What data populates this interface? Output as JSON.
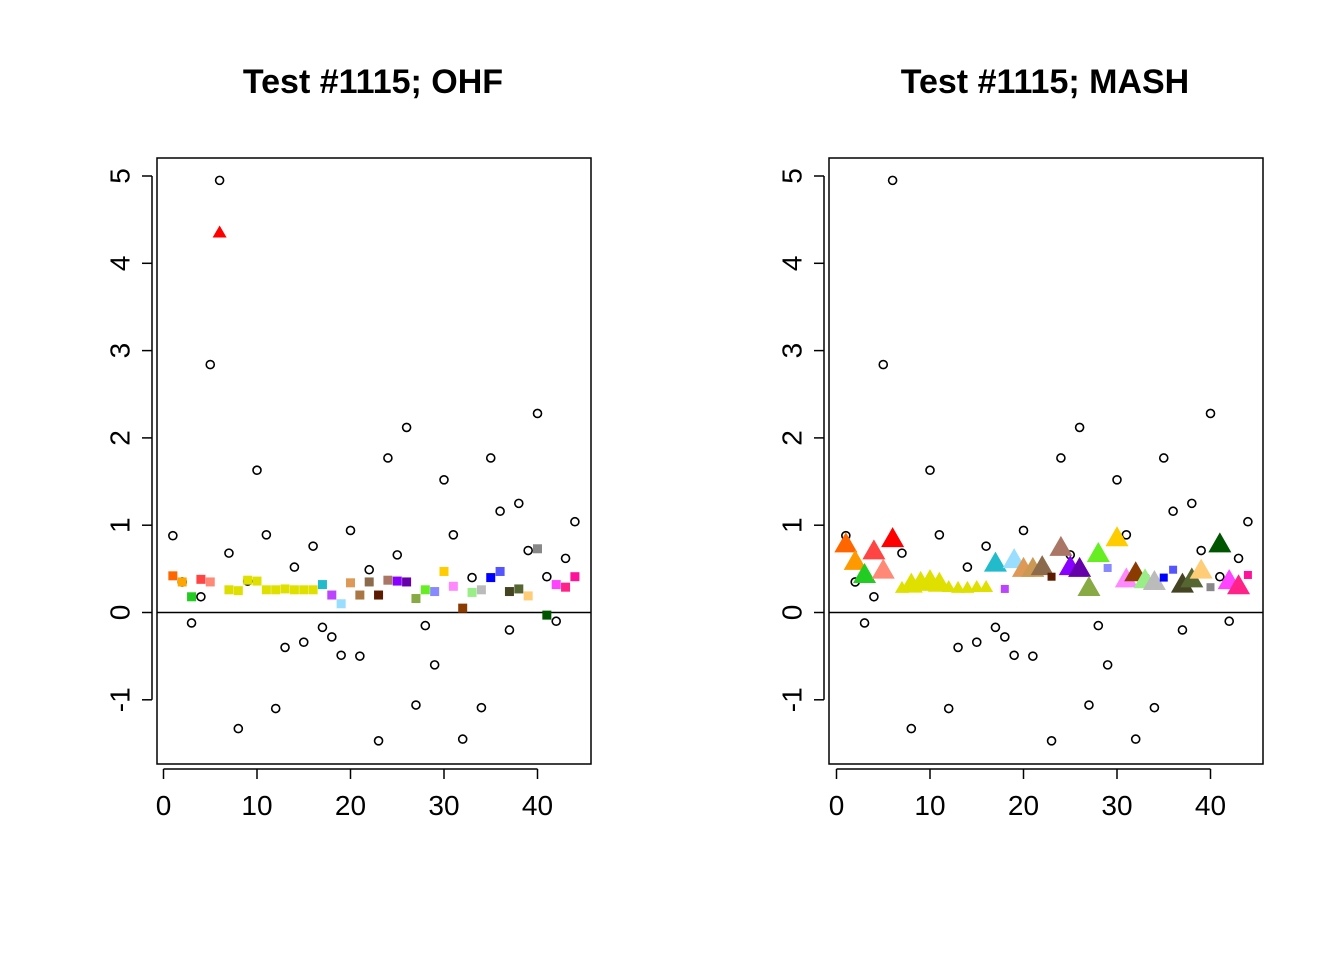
{
  "chart_data": [
    {
      "type": "scatter",
      "title": "Test #1115; OHF",
      "xlabel": "",
      "ylabel": "",
      "xlim": [
        0,
        44
      ],
      "ylim": [
        -1.5,
        5
      ],
      "xticks": [
        "0",
        "10",
        "20",
        "30",
        "40"
      ],
      "yticks": [
        "-1",
        "0",
        "1",
        "2",
        "3",
        "4",
        "5"
      ],
      "hline": 0,
      "grid": false,
      "legend": "none",
      "series": [
        {
          "marker": "open-circle",
          "color": "#000000",
          "x": [
            1,
            2,
            3,
            4,
            5,
            6,
            7,
            8,
            9,
            10,
            11,
            12,
            13,
            14,
            15,
            16,
            17,
            18,
            19,
            20,
            21,
            22,
            23,
            24,
            25,
            26,
            27,
            28,
            29,
            30,
            31,
            32,
            33,
            34,
            35,
            36,
            37,
            38,
            39,
            40,
            41,
            42,
            43,
            44
          ],
          "y": [
            0.88,
            0.35,
            -0.12,
            0.18,
            2.84,
            4.95,
            0.68,
            -1.33,
            0.36,
            1.63,
            0.89,
            -1.1,
            -0.4,
            0.52,
            -0.34,
            0.76,
            -0.17,
            -0.28,
            -0.49,
            0.94,
            -0.5,
            0.49,
            -1.47,
            1.77,
            0.66,
            2.12,
            -1.06,
            -0.15,
            -0.6,
            1.52,
            0.89,
            -1.45,
            0.4,
            -1.09,
            1.77,
            1.16,
            -0.2,
            1.25,
            0.71,
            2.28,
            0.41,
            -0.1,
            0.62,
            1.04
          ]
        },
        {
          "marker": "filled-square",
          "x": [
            1,
            2,
            3,
            4,
            5,
            7,
            8,
            9,
            10,
            11,
            12,
            13,
            14,
            15,
            16,
            17,
            18,
            19,
            20,
            21,
            22,
            23,
            24,
            25,
            26,
            27,
            28,
            29,
            30,
            31,
            32,
            33,
            34,
            35,
            36,
            37,
            38,
            39,
            40,
            41,
            42,
            43,
            44
          ],
          "y": [
            0.42,
            0.35,
            0.18,
            0.38,
            0.35,
            0.26,
            0.25,
            0.37,
            0.36,
            0.26,
            0.26,
            0.27,
            0.26,
            0.26,
            0.26,
            0.32,
            0.2,
            0.1,
            0.34,
            0.2,
            0.35,
            0.2,
            0.37,
            0.36,
            0.35,
            0.16,
            0.26,
            0.24,
            0.47,
            0.3,
            0.05,
            0.23,
            0.26,
            0.4,
            0.47,
            0.24,
            0.27,
            0.19,
            0.73,
            -0.03,
            0.32,
            0.29,
            0.41
          ],
          "colors": [
            "#ff6600",
            "#ffa500",
            "#22cc22",
            "#ff4444",
            "#ff8877",
            "#dddd00",
            "#e0e000",
            "#e0e000",
            "#e0e000",
            "#e0e000",
            "#e0e000",
            "#e0e000",
            "#e0e000",
            "#e0e000",
            "#e0e000",
            "#22bbcc",
            "#bb44ff",
            "#99ddff",
            "#dd9955",
            "#aa7744",
            "#8b6b4b",
            "#5c1a00",
            "#aa7766",
            "#8800ff",
            "#6600aa",
            "#88aa44",
            "#66ee22",
            "#8888ff",
            "#ffcc00",
            "#ff88ff",
            "#8b3a00",
            "#99ee88",
            "#bbbbbb",
            "#0000ff",
            "#5555ff",
            "#444422",
            "#556633",
            "#ffcc77",
            "#888888",
            "#005500",
            "#ff44ff",
            "#ff2288",
            "#ff1199"
          ]
        },
        {
          "marker": "filled-triangle",
          "x": [
            6
          ],
          "y": [
            4.35
          ],
          "colors": [
            "#ff0000"
          ]
        }
      ]
    },
    {
      "type": "scatter",
      "title": "Test #1115; MASH",
      "xlabel": "",
      "ylabel": "",
      "xlim": [
        0,
        44
      ],
      "ylim": [
        -1.5,
        5
      ],
      "xticks": [
        "0",
        "10",
        "20",
        "30",
        "40"
      ],
      "yticks": [
        "-1",
        "0",
        "1",
        "2",
        "3",
        "4",
        "5"
      ],
      "hline": 0,
      "grid": false,
      "legend": "none",
      "series": [
        {
          "marker": "open-circle",
          "color": "#000000",
          "x": [
            1,
            2,
            3,
            4,
            5,
            6,
            7,
            8,
            9,
            10,
            11,
            12,
            13,
            14,
            15,
            16,
            17,
            18,
            19,
            20,
            21,
            22,
            23,
            24,
            25,
            26,
            27,
            28,
            29,
            30,
            31,
            32,
            33,
            34,
            35,
            36,
            37,
            38,
            39,
            40,
            41,
            42,
            43,
            44
          ],
          "y": [
            0.88,
            0.35,
            -0.12,
            0.18,
            2.84,
            4.95,
            0.68,
            -1.33,
            0.36,
            1.63,
            0.89,
            -1.1,
            -0.4,
            0.52,
            -0.34,
            0.76,
            -0.17,
            -0.28,
            -0.49,
            0.94,
            -0.5,
            0.49,
            -1.47,
            1.77,
            0.66,
            2.12,
            -1.06,
            -0.15,
            -0.6,
            1.52,
            0.89,
            -1.45,
            0.4,
            -1.09,
            1.77,
            1.16,
            -0.2,
            1.25,
            0.71,
            2.28,
            0.41,
            -0.1,
            0.62,
            1.04
          ]
        },
        {
          "marker": "filled-triangle-large",
          "x": [
            1,
            2,
            3,
            4,
            5,
            6,
            7,
            8,
            9,
            10,
            11,
            12,
            13,
            14,
            15,
            16,
            17,
            19,
            20,
            21,
            22,
            24,
            25,
            26,
            27,
            28,
            30,
            31,
            32,
            33,
            34,
            37,
            38,
            39,
            41,
            42,
            43
          ],
          "y": [
            0.78,
            0.58,
            0.43,
            0.7,
            0.48,
            0.84,
            0.28,
            0.32,
            0.34,
            0.36,
            0.33,
            0.29,
            0.28,
            0.28,
            0.29,
            0.29,
            0.56,
            0.6,
            0.5,
            0.5,
            0.52,
            0.74,
            0.52,
            0.5,
            0.28,
            0.67,
            0.85,
            0.38,
            0.45,
            0.37,
            0.35,
            0.32,
            0.38,
            0.48,
            0.78,
            0.36,
            0.3
          ],
          "colors": [
            "#ff6600",
            "#ff9900",
            "#22cc22",
            "#ff4444",
            "#ff8877",
            "#ff0000",
            "#e0e000",
            "#e0e000",
            "#e0e000",
            "#e0e000",
            "#e0e000",
            "#e0e000",
            "#e0e000",
            "#e0e000",
            "#e0e000",
            "#e0e000",
            "#22bbcc",
            "#99ddff",
            "#dd9955",
            "#cc9955",
            "#8b6b4b",
            "#aa7766",
            "#8800ff",
            "#6600aa",
            "#88aa44",
            "#66ee22",
            "#ffcc00",
            "#ff88ff",
            "#8b3a00",
            "#99ee88",
            "#bbbbbb",
            "#444422",
            "#556633",
            "#ffcc77",
            "#005500",
            "#ff44ff",
            "#ff2288"
          ]
        },
        {
          "marker": "small-filled",
          "x": [
            18,
            23,
            29,
            35,
            36,
            40,
            44
          ],
          "y": [
            0.27,
            0.41,
            0.51,
            0.4,
            0.49,
            0.29,
            0.43
          ],
          "colors": [
            "#bb44ff",
            "#5c1a00",
            "#8888ff",
            "#0000ff",
            "#5555ff",
            "#888888",
            "#ff1199"
          ]
        }
      ]
    }
  ]
}
